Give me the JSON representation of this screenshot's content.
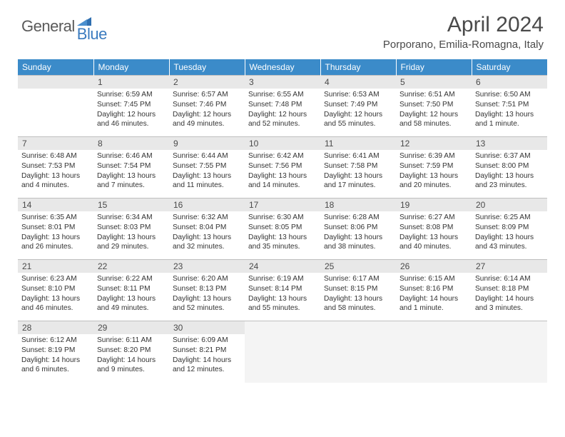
{
  "brand": {
    "general": "General",
    "blue": "Blue"
  },
  "title": "April 2024",
  "location": "Porporano, Emilia-Romagna, Italy",
  "colors": {
    "header_bg": "#3b8bc9",
    "header_text": "#ffffff",
    "daynum_bg": "#e8e8e8",
    "border": "#bfbfbf",
    "brand_gray": "#5a5a5a",
    "brand_blue": "#3b7bbf"
  },
  "weekdays": [
    "Sunday",
    "Monday",
    "Tuesday",
    "Wednesday",
    "Thursday",
    "Friday",
    "Saturday"
  ],
  "weeks": [
    [
      {
        "blank": true
      },
      {
        "n": "1",
        "sr": "Sunrise: 6:59 AM",
        "ss": "Sunset: 7:45 PM",
        "dl": "Daylight: 12 hours and 46 minutes."
      },
      {
        "n": "2",
        "sr": "Sunrise: 6:57 AM",
        "ss": "Sunset: 7:46 PM",
        "dl": "Daylight: 12 hours and 49 minutes."
      },
      {
        "n": "3",
        "sr": "Sunrise: 6:55 AM",
        "ss": "Sunset: 7:48 PM",
        "dl": "Daylight: 12 hours and 52 minutes."
      },
      {
        "n": "4",
        "sr": "Sunrise: 6:53 AM",
        "ss": "Sunset: 7:49 PM",
        "dl": "Daylight: 12 hours and 55 minutes."
      },
      {
        "n": "5",
        "sr": "Sunrise: 6:51 AM",
        "ss": "Sunset: 7:50 PM",
        "dl": "Daylight: 12 hours and 58 minutes."
      },
      {
        "n": "6",
        "sr": "Sunrise: 6:50 AM",
        "ss": "Sunset: 7:51 PM",
        "dl": "Daylight: 13 hours and 1 minute."
      }
    ],
    [
      {
        "n": "7",
        "sr": "Sunrise: 6:48 AM",
        "ss": "Sunset: 7:53 PM",
        "dl": "Daylight: 13 hours and 4 minutes."
      },
      {
        "n": "8",
        "sr": "Sunrise: 6:46 AM",
        "ss": "Sunset: 7:54 PM",
        "dl": "Daylight: 13 hours and 7 minutes."
      },
      {
        "n": "9",
        "sr": "Sunrise: 6:44 AM",
        "ss": "Sunset: 7:55 PM",
        "dl": "Daylight: 13 hours and 11 minutes."
      },
      {
        "n": "10",
        "sr": "Sunrise: 6:42 AM",
        "ss": "Sunset: 7:56 PM",
        "dl": "Daylight: 13 hours and 14 minutes."
      },
      {
        "n": "11",
        "sr": "Sunrise: 6:41 AM",
        "ss": "Sunset: 7:58 PM",
        "dl": "Daylight: 13 hours and 17 minutes."
      },
      {
        "n": "12",
        "sr": "Sunrise: 6:39 AM",
        "ss": "Sunset: 7:59 PM",
        "dl": "Daylight: 13 hours and 20 minutes."
      },
      {
        "n": "13",
        "sr": "Sunrise: 6:37 AM",
        "ss": "Sunset: 8:00 PM",
        "dl": "Daylight: 13 hours and 23 minutes."
      }
    ],
    [
      {
        "n": "14",
        "sr": "Sunrise: 6:35 AM",
        "ss": "Sunset: 8:01 PM",
        "dl": "Daylight: 13 hours and 26 minutes."
      },
      {
        "n": "15",
        "sr": "Sunrise: 6:34 AM",
        "ss": "Sunset: 8:03 PM",
        "dl": "Daylight: 13 hours and 29 minutes."
      },
      {
        "n": "16",
        "sr": "Sunrise: 6:32 AM",
        "ss": "Sunset: 8:04 PM",
        "dl": "Daylight: 13 hours and 32 minutes."
      },
      {
        "n": "17",
        "sr": "Sunrise: 6:30 AM",
        "ss": "Sunset: 8:05 PM",
        "dl": "Daylight: 13 hours and 35 minutes."
      },
      {
        "n": "18",
        "sr": "Sunrise: 6:28 AM",
        "ss": "Sunset: 8:06 PM",
        "dl": "Daylight: 13 hours and 38 minutes."
      },
      {
        "n": "19",
        "sr": "Sunrise: 6:27 AM",
        "ss": "Sunset: 8:08 PM",
        "dl": "Daylight: 13 hours and 40 minutes."
      },
      {
        "n": "20",
        "sr": "Sunrise: 6:25 AM",
        "ss": "Sunset: 8:09 PM",
        "dl": "Daylight: 13 hours and 43 minutes."
      }
    ],
    [
      {
        "n": "21",
        "sr": "Sunrise: 6:23 AM",
        "ss": "Sunset: 8:10 PM",
        "dl": "Daylight: 13 hours and 46 minutes."
      },
      {
        "n": "22",
        "sr": "Sunrise: 6:22 AM",
        "ss": "Sunset: 8:11 PM",
        "dl": "Daylight: 13 hours and 49 minutes."
      },
      {
        "n": "23",
        "sr": "Sunrise: 6:20 AM",
        "ss": "Sunset: 8:13 PM",
        "dl": "Daylight: 13 hours and 52 minutes."
      },
      {
        "n": "24",
        "sr": "Sunrise: 6:19 AM",
        "ss": "Sunset: 8:14 PM",
        "dl": "Daylight: 13 hours and 55 minutes."
      },
      {
        "n": "25",
        "sr": "Sunrise: 6:17 AM",
        "ss": "Sunset: 8:15 PM",
        "dl": "Daylight: 13 hours and 58 minutes."
      },
      {
        "n": "26",
        "sr": "Sunrise: 6:15 AM",
        "ss": "Sunset: 8:16 PM",
        "dl": "Daylight: 14 hours and 1 minute."
      },
      {
        "n": "27",
        "sr": "Sunrise: 6:14 AM",
        "ss": "Sunset: 8:18 PM",
        "dl": "Daylight: 14 hours and 3 minutes."
      }
    ],
    [
      {
        "n": "28",
        "sr": "Sunrise: 6:12 AM",
        "ss": "Sunset: 8:19 PM",
        "dl": "Daylight: 14 hours and 6 minutes."
      },
      {
        "n": "29",
        "sr": "Sunrise: 6:11 AM",
        "ss": "Sunset: 8:20 PM",
        "dl": "Daylight: 14 hours and 9 minutes."
      },
      {
        "n": "30",
        "sr": "Sunrise: 6:09 AM",
        "ss": "Sunset: 8:21 PM",
        "dl": "Daylight: 14 hours and 12 minutes."
      },
      {
        "after": true
      },
      {
        "after": true
      },
      {
        "after": true
      },
      {
        "after": true
      }
    ]
  ]
}
